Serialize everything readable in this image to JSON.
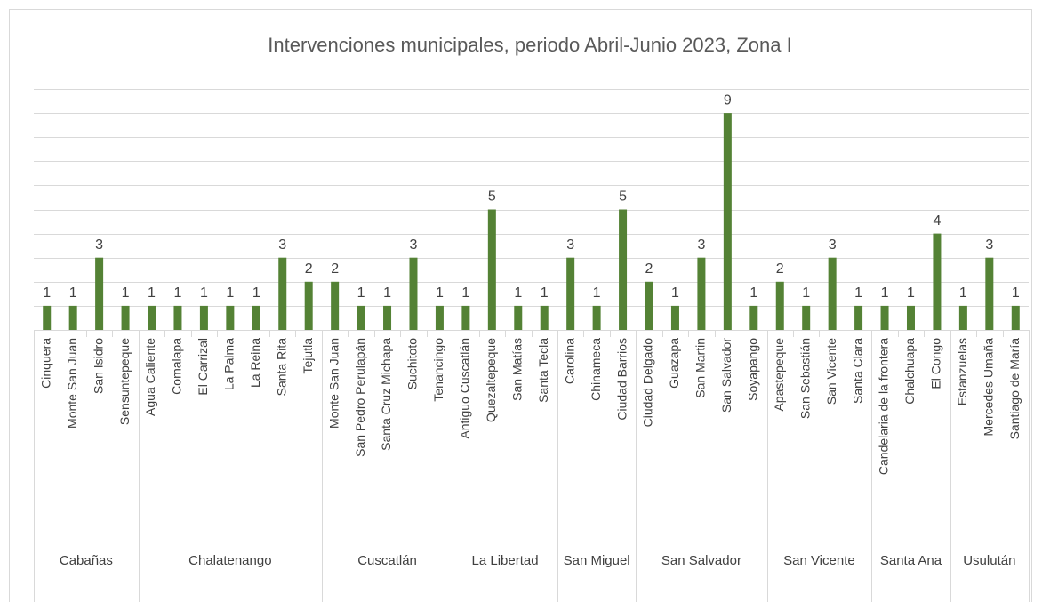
{
  "chart_data": {
    "type": "bar",
    "title": "Intervenciones municipales, periodo Abril-Junio 2023, Zona I",
    "color": "#548235",
    "ylim": [
      0,
      10
    ],
    "yticks": [
      0,
      1,
      2,
      3,
      4,
      5,
      6,
      7,
      8,
      9,
      10
    ],
    "grid": true,
    "groups": [
      {
        "name": "Cabañas",
        "categories": [
          "Cinquera",
          "Monte San Juan",
          "San Isidro",
          "Sensuntepeque"
        ],
        "values": [
          1,
          1,
          3,
          1
        ]
      },
      {
        "name": "Chalatenango",
        "categories": [
          "Agua Caliente",
          "Comalapa",
          "El Carrizal",
          "La Palma",
          "La Reina",
          "Santa Rita",
          "Tejutla"
        ],
        "values": [
          1,
          1,
          1,
          1,
          1,
          3,
          2
        ]
      },
      {
        "name": "Cuscatlán",
        "categories": [
          "Monte San Juan",
          "San Pedro Perulapán",
          "Santa Cruz Michapa",
          "Suchitoto",
          "Tenancingo"
        ],
        "values": [
          2,
          1,
          1,
          3,
          1
        ]
      },
      {
        "name": "La Libertad",
        "categories": [
          "Antiguo Cuscatlán",
          "Quezaltepeque",
          "San Matías",
          "Santa Tecla"
        ],
        "values": [
          1,
          5,
          1,
          1
        ]
      },
      {
        "name": "San Miguel",
        "categories": [
          "Carolina",
          "Chinameca",
          "Ciudad Barrios"
        ],
        "values": [
          3,
          1,
          5
        ]
      },
      {
        "name": "San Salvador",
        "categories": [
          "Ciudad Delgado",
          "Guazapa",
          "San Martin",
          "San Salvador",
          "Soyapango"
        ],
        "values": [
          2,
          1,
          3,
          9,
          1
        ]
      },
      {
        "name": "San Vicente",
        "categories": [
          "Apastepeque",
          "San Sebastián",
          "San Vicente",
          "Santa Clara"
        ],
        "values": [
          2,
          1,
          3,
          1
        ]
      },
      {
        "name": "Santa Ana",
        "categories": [
          "Candelaria de la frontera",
          "Chalchuapa",
          "El Congo"
        ],
        "values": [
          1,
          1,
          4
        ]
      },
      {
        "name": "Usulután",
        "categories": [
          "Estanzuelas",
          "Mercedes Umaña",
          "Santiago de María"
        ],
        "values": [
          1,
          3,
          1
        ]
      }
    ]
  }
}
